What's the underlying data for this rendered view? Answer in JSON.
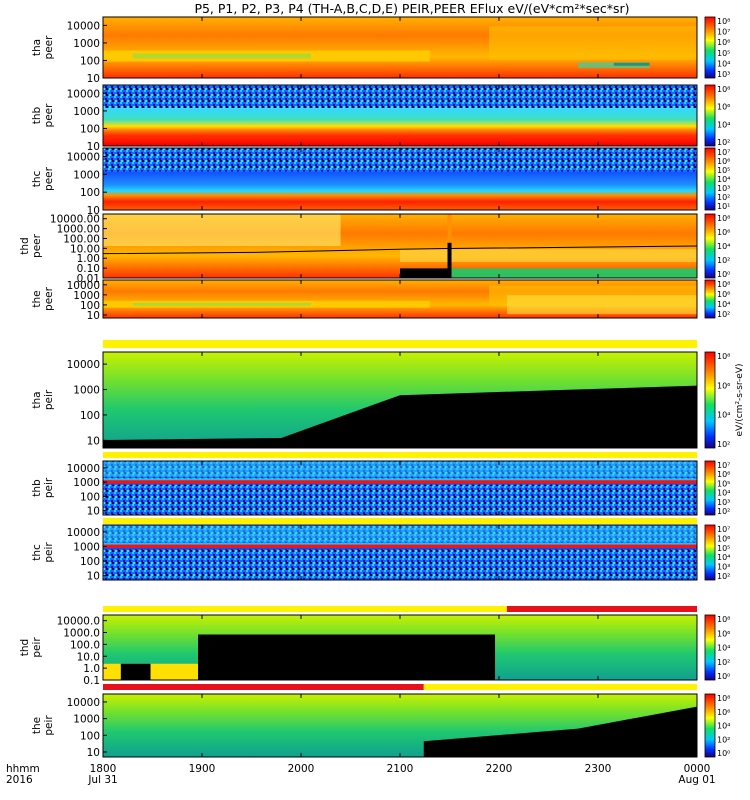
{
  "title": "P5, P1, P2, P3, P4 (TH-A,B,C,D,E) PEIR,PEER EFlux eV/(eV*cm²*sec*sr)",
  "time_axis": {
    "row1_label": "hhmm",
    "row2_label": "2016",
    "ticks": [
      {
        "hhmm": "1800",
        "date": "Jul 31"
      },
      {
        "hhmm": "1900",
        "date": ""
      },
      {
        "hhmm": "2000",
        "date": ""
      },
      {
        "hhmm": "2100",
        "date": ""
      },
      {
        "hhmm": "2200",
        "date": ""
      },
      {
        "hhmm": "2300",
        "date": ""
      },
      {
        "hhmm": "0000",
        "date": "Aug 01"
      }
    ]
  },
  "colorbar_unit": "eV/(cm²-s-sr-eV)",
  "colors": {
    "black": "#000000",
    "flag_red": "#e8101a",
    "flag_yellow": "#fff200"
  },
  "chart_data": [
    {
      "type": "heatmap",
      "probe": "tha",
      "species": "peer",
      "ylabel_line1": "tha",
      "ylabel_line2": "peer",
      "yticks": [
        "10000",
        "1000",
        "100",
        "10"
      ],
      "ylim": [
        10,
        30000
      ],
      "yscale": "log",
      "colorbar_ticks": [
        "10⁸",
        "10⁷",
        "10⁶",
        "10⁵",
        "10⁴",
        "10³"
      ],
      "xlim": [
        "2016-07-31 18:00",
        "2016-08-01 00:00"
      ]
    },
    {
      "type": "heatmap",
      "probe": "thb",
      "species": "peer",
      "ylabel_line1": "thb",
      "ylabel_line2": "peer",
      "yticks": [
        "10000",
        "1000",
        "100",
        "10"
      ],
      "ylim": [
        10,
        30000
      ],
      "yscale": "log",
      "colorbar_ticks": [
        "10⁸",
        "10⁶",
        "10⁴",
        "10²"
      ]
    },
    {
      "type": "heatmap",
      "probe": "thc",
      "species": "peer",
      "ylabel_line1": "thc",
      "ylabel_line2": "peer",
      "yticks": [
        "10000",
        "1000",
        "100",
        "10"
      ],
      "ylim": [
        10,
        30000
      ],
      "yscale": "log",
      "colorbar_ticks": [
        "10⁷",
        "10⁶",
        "10⁵",
        "10⁴",
        "10³",
        "10²",
        "10¹"
      ]
    },
    {
      "type": "heatmap",
      "probe": "thd",
      "species": "peer",
      "ylabel_line1": "thd",
      "ylabel_line2": "peer",
      "yticks": [
        "10000.00",
        "1000.00",
        "100.00",
        "10.00",
        "1.00",
        "0.10",
        "0.01"
      ],
      "ylim": [
        0.01,
        30000
      ],
      "yscale": "log",
      "colorbar_ticks": [
        "10⁸",
        "10⁶",
        "10⁴",
        "10²",
        "10⁰"
      ]
    },
    {
      "type": "heatmap",
      "probe": "the",
      "species": "peer",
      "ylabel_line1": "the",
      "ylabel_line2": "peer",
      "yticks": [
        "10000",
        "1000",
        "100",
        "10"
      ],
      "ylim": [
        5,
        30000
      ],
      "yscale": "log",
      "colorbar_ticks": [
        "10⁸",
        "10⁶",
        "10⁴",
        "10²"
      ]
    },
    {
      "type": "heatmap",
      "probe": "tha",
      "species": "peir",
      "ylabel_line1": "tha",
      "ylabel_line2": "peir",
      "yticks": [
        "10000",
        "1000",
        "100",
        "10"
      ],
      "ylim": [
        5,
        30000
      ],
      "yscale": "log",
      "colorbar_ticks": [
        "10⁸",
        "10⁶",
        "10⁴",
        "10²"
      ]
    },
    {
      "type": "heatmap",
      "probe": "thb",
      "species": "peir",
      "ylabel_line1": "thb",
      "ylabel_line2": "peir",
      "yticks": [
        "10000",
        "1000",
        "100",
        "10"
      ],
      "ylim": [
        5,
        30000
      ],
      "yscale": "log",
      "colorbar_ticks": [
        "10⁷",
        "10⁶",
        "10⁵",
        "10⁴",
        "10³",
        "10²"
      ]
    },
    {
      "type": "heatmap",
      "probe": "thc",
      "species": "peir",
      "ylabel_line1": "thc",
      "ylabel_line2": "peir",
      "yticks": [
        "10000",
        "1000",
        "100",
        "10"
      ],
      "ylim": [
        5,
        30000
      ],
      "yscale": "log",
      "colorbar_ticks": [
        "10⁷",
        "10⁶",
        "10⁵",
        "10⁴",
        "10³",
        "10²"
      ]
    },
    {
      "type": "heatmap",
      "probe": "thd",
      "species": "peir",
      "ylabel_line1": "thd",
      "ylabel_line2": "peir",
      "yticks": [
        "10000.0",
        "1000.0",
        "100.0",
        "10.0",
        "1.0",
        "0.1"
      ],
      "ylim": [
        0.1,
        30000
      ],
      "yscale": "log",
      "colorbar_ticks": [
        "10⁸",
        "10⁶",
        "10⁴",
        "10²",
        "10⁰"
      ]
    },
    {
      "type": "heatmap",
      "probe": "the",
      "species": "peir",
      "ylabel_line1": "the",
      "ylabel_line2": "peir",
      "yticks": [
        "10000",
        "1000",
        "100",
        "10"
      ],
      "ylim": [
        5,
        30000
      ],
      "yscale": "log",
      "colorbar_ticks": [
        "10⁸",
        "10⁶",
        "10⁴",
        "10²",
        "10⁰"
      ]
    }
  ]
}
